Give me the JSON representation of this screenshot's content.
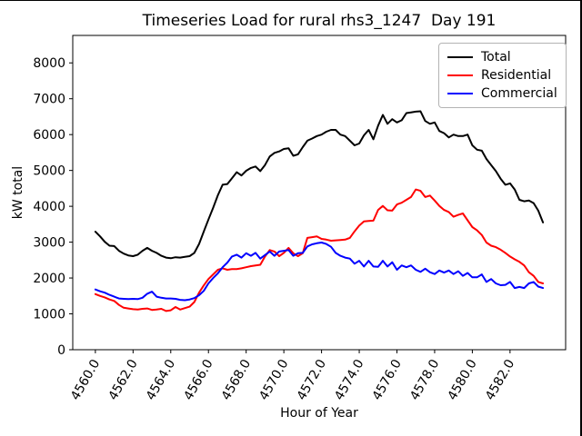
{
  "chart_data": {
    "type": "line",
    "title": "Timeseries Load for rural rhs3_1247  Day 191",
    "xlabel": "Hour of Year",
    "ylabel": "kW total",
    "legend_position": "upper right",
    "grid": false,
    "xlim": [
      4558.8,
      4584.95
    ],
    "ylim": [
      0,
      8766
    ],
    "x_ticks": [
      4560,
      4562,
      4564,
      4566,
      4568,
      4570,
      4572,
      4574,
      4576,
      4578,
      4580,
      4582
    ],
    "x_tick_labels": [
      "4560.0",
      "4562.0",
      "4564.0",
      "4566.0",
      "4568.0",
      "4570.0",
      "4572.0",
      "4574.0",
      "4576.0",
      "4578.0",
      "4580.0",
      "4582.0"
    ],
    "y_ticks": [
      0,
      1000,
      2000,
      3000,
      4000,
      5000,
      6000,
      7000,
      8000
    ],
    "y_tick_labels": [
      "0",
      "1000",
      "2000",
      "3000",
      "4000",
      "5000",
      "6000",
      "7000",
      "8000"
    ],
    "x": [
      4560.0,
      4560.25,
      4560.5,
      4560.75,
      4561.0,
      4561.25,
      4561.5,
      4561.75,
      4562.0,
      4562.25,
      4562.5,
      4562.75,
      4563.0,
      4563.25,
      4563.5,
      4563.75,
      4564.0,
      4564.25,
      4564.5,
      4564.75,
      4565.0,
      4565.25,
      4565.5,
      4565.75,
      4566.0,
      4566.25,
      4566.5,
      4566.75,
      4567.0,
      4567.25,
      4567.5,
      4567.75,
      4568.0,
      4568.25,
      4568.5,
      4568.75,
      4569.0,
      4569.25,
      4569.5,
      4569.75,
      4570.0,
      4570.25,
      4570.5,
      4570.75,
      4571.0,
      4571.25,
      4571.5,
      4571.75,
      4572.0,
      4572.25,
      4572.5,
      4572.75,
      4573.0,
      4573.25,
      4573.5,
      4573.75,
      4574.0,
      4574.25,
      4574.5,
      4574.75,
      4575.0,
      4575.25,
      4575.5,
      4575.75,
      4576.0,
      4576.25,
      4576.5,
      4576.75,
      4577.0,
      4577.25,
      4577.5,
      4577.75,
      4578.0,
      4578.25,
      4578.5,
      4578.75,
      4579.0,
      4579.25,
      4579.5,
      4579.75,
      4580.0,
      4580.25,
      4580.5,
      4580.75,
      4581.0,
      4581.25,
      4581.5,
      4581.75,
      4582.0,
      4582.25,
      4582.5,
      4582.75,
      4583.0,
      4583.25,
      4583.5,
      4583.75
    ],
    "series": [
      {
        "name": "Total",
        "color": "#000000",
        "values": [
          3290,
          3160,
          3010,
          2900,
          2890,
          2760,
          2680,
          2630,
          2610,
          2650,
          2760,
          2840,
          2760,
          2700,
          2620,
          2570,
          2550,
          2580,
          2570,
          2590,
          2610,
          2700,
          2950,
          3290,
          3630,
          3960,
          4310,
          4600,
          4620,
          4780,
          4950,
          4860,
          4990,
          5070,
          5110,
          4980,
          5150,
          5390,
          5490,
          5530,
          5600,
          5620,
          5410,
          5450,
          5650,
          5830,
          5890,
          5960,
          6000,
          6080,
          6130,
          6130,
          6000,
          5960,
          5830,
          5700,
          5750,
          5980,
          6130,
          5870,
          6250,
          6550,
          6300,
          6430,
          6340,
          6400,
          6600,
          6620,
          6640,
          6650,
          6380,
          6300,
          6340,
          6100,
          6040,
          5920,
          6000,
          5960,
          5960,
          6000,
          5700,
          5580,
          5550,
          5320,
          5150,
          4980,
          4770,
          4600,
          4640,
          4470,
          4180,
          4140,
          4160,
          4090,
          3880,
          3550
        ]
      },
      {
        "name": "Residential",
        "color": "#ff0000",
        "values": [
          1550,
          1500,
          1460,
          1400,
          1360,
          1250,
          1170,
          1150,
          1130,
          1120,
          1140,
          1150,
          1110,
          1120,
          1140,
          1080,
          1100,
          1190,
          1120,
          1160,
          1200,
          1330,
          1590,
          1790,
          1970,
          2100,
          2230,
          2270,
          2230,
          2250,
          2250,
          2270,
          2300,
          2330,
          2350,
          2370,
          2600,
          2780,
          2740,
          2610,
          2700,
          2840,
          2690,
          2610,
          2690,
          3120,
          3140,
          3160,
          3090,
          3070,
          3040,
          3050,
          3060,
          3070,
          3120,
          3300,
          3460,
          3580,
          3590,
          3600,
          3900,
          4010,
          3890,
          3880,
          4050,
          4100,
          4180,
          4260,
          4470,
          4430,
          4260,
          4300,
          4160,
          4010,
          3900,
          3840,
          3710,
          3760,
          3800,
          3610,
          3420,
          3330,
          3200,
          2990,
          2900,
          2860,
          2790,
          2700,
          2600,
          2520,
          2450,
          2350,
          2160,
          2060,
          1890,
          1850
        ]
      },
      {
        "name": "Commercial",
        "color": "#0000ff",
        "values": [
          1680,
          1630,
          1590,
          1530,
          1480,
          1430,
          1420,
          1410,
          1420,
          1410,
          1450,
          1560,
          1620,
          1480,
          1450,
          1430,
          1430,
          1420,
          1390,
          1380,
          1400,
          1440,
          1520,
          1640,
          1850,
          2000,
          2130,
          2300,
          2430,
          2600,
          2650,
          2570,
          2690,
          2620,
          2700,
          2540,
          2640,
          2740,
          2620,
          2740,
          2760,
          2780,
          2620,
          2690,
          2700,
          2880,
          2940,
          2970,
          2990,
          2950,
          2870,
          2700,
          2620,
          2570,
          2540,
          2400,
          2480,
          2320,
          2480,
          2320,
          2310,
          2480,
          2320,
          2440,
          2230,
          2350,
          2300,
          2350,
          2230,
          2170,
          2260,
          2160,
          2110,
          2210,
          2150,
          2210,
          2110,
          2190,
          2060,
          2140,
          2020,
          2020,
          2100,
          1890,
          1970,
          1850,
          1800,
          1810,
          1890,
          1720,
          1750,
          1720,
          1850,
          1890,
          1760,
          1720
        ]
      }
    ]
  }
}
